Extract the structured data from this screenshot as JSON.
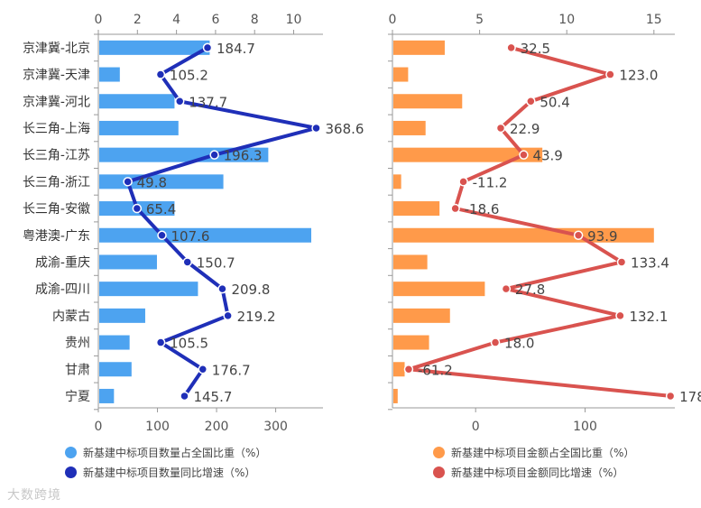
{
  "chart_data": [
    {
      "type": "bar+line",
      "categories": [
        "京津冀-北京",
        "京津冀-天津",
        "京津冀-河北",
        "长三角-上海",
        "长三角-江苏",
        "长三角-浙江",
        "长三角-安徽",
        "粤港澳-广东",
        "成渝-重庆",
        "成渝-四川",
        "内蒙古",
        "贵州",
        "甘肃",
        "宁夏"
      ],
      "series": [
        {
          "name": "新基建中标项目数量占全国比重（%）",
          "kind": "bar",
          "axis": "top",
          "color": "#4da3f0",
          "values": [
            5.7,
            1.1,
            3.9,
            4.1,
            8.7,
            6.4,
            3.9,
            10.9,
            3.0,
            5.1,
            2.4,
            1.6,
            1.7,
            0.8
          ]
        },
        {
          "name": "新基建中标项目数量同比增速（%）",
          "kind": "line",
          "axis": "bottom",
          "color": "#1f2fb8",
          "values": [
            184.7,
            105.2,
            137.7,
            368.6,
            196.3,
            49.8,
            65.4,
            107.6,
            150.7,
            209.8,
            219.2,
            105.5,
            176.7,
            145.7
          ],
          "labels": [
            "184.7",
            "105.2",
            "137.7",
            "368.6",
            "196.3",
            "49.8",
            "65.4",
            "107.6",
            "150.7",
            "209.8",
            "219.2",
            "105.5",
            "176.7",
            "145.7"
          ]
        }
      ],
      "top_axis": {
        "min": 0,
        "max": 11.5,
        "ticks": [
          "0",
          "2",
          "4",
          "6",
          "8",
          "10"
        ]
      },
      "bottom_axis": {
        "min": 0,
        "max": 380,
        "ticks": [
          "0",
          "100",
          "200",
          "300"
        ]
      },
      "legend": "bottom"
    },
    {
      "type": "bar+line",
      "categories": [
        "京津冀-北京",
        "京津冀-天津",
        "京津冀-河北",
        "长三角-上海",
        "长三角-江苏",
        "长三角-浙江",
        "长三角-安徽",
        "粤港澳-广东",
        "成渝-重庆",
        "成渝-四川",
        "内蒙古",
        "贵州",
        "甘肃",
        "宁夏"
      ],
      "series": [
        {
          "name": "新基建中标项目金额占全国比重（%）",
          "kind": "bar",
          "axis": "top",
          "color": "#ff9a4a",
          "values": [
            3.0,
            0.9,
            4.0,
            1.9,
            8.6,
            0.5,
            2.7,
            15.0,
            2.0,
            5.3,
            3.3,
            2.1,
            0.7,
            0.3
          ]
        },
        {
          "name": "新基建中标项目金额同比增速（%）",
          "kind": "line",
          "axis": "bottom",
          "color": "#d9534f",
          "values": [
            32.5,
            123.0,
            50.4,
            22.9,
            43.9,
            -11.2,
            -18.6,
            93.9,
            133.4,
            27.8,
            132.1,
            18.0,
            -61.2,
            178
          ],
          "labels": [
            "32.5",
            "123.0",
            "50.4",
            "22.9",
            "43.9",
            "-11.2",
            "-18.6",
            "93.9",
            "133.4",
            "27.8",
            "132.1",
            "18.0",
            "-61.2",
            "178"
          ]
        }
      ],
      "top_axis": {
        "min": 0,
        "max": 16.2,
        "ticks": [
          "0",
          "5",
          "10",
          "15"
        ]
      },
      "bottom_axis": {
        "min": -76,
        "max": 182,
        "ticks": [
          "0",
          "100"
        ]
      },
      "legend": "bottom"
    }
  ],
  "watermark": "大数跨境"
}
